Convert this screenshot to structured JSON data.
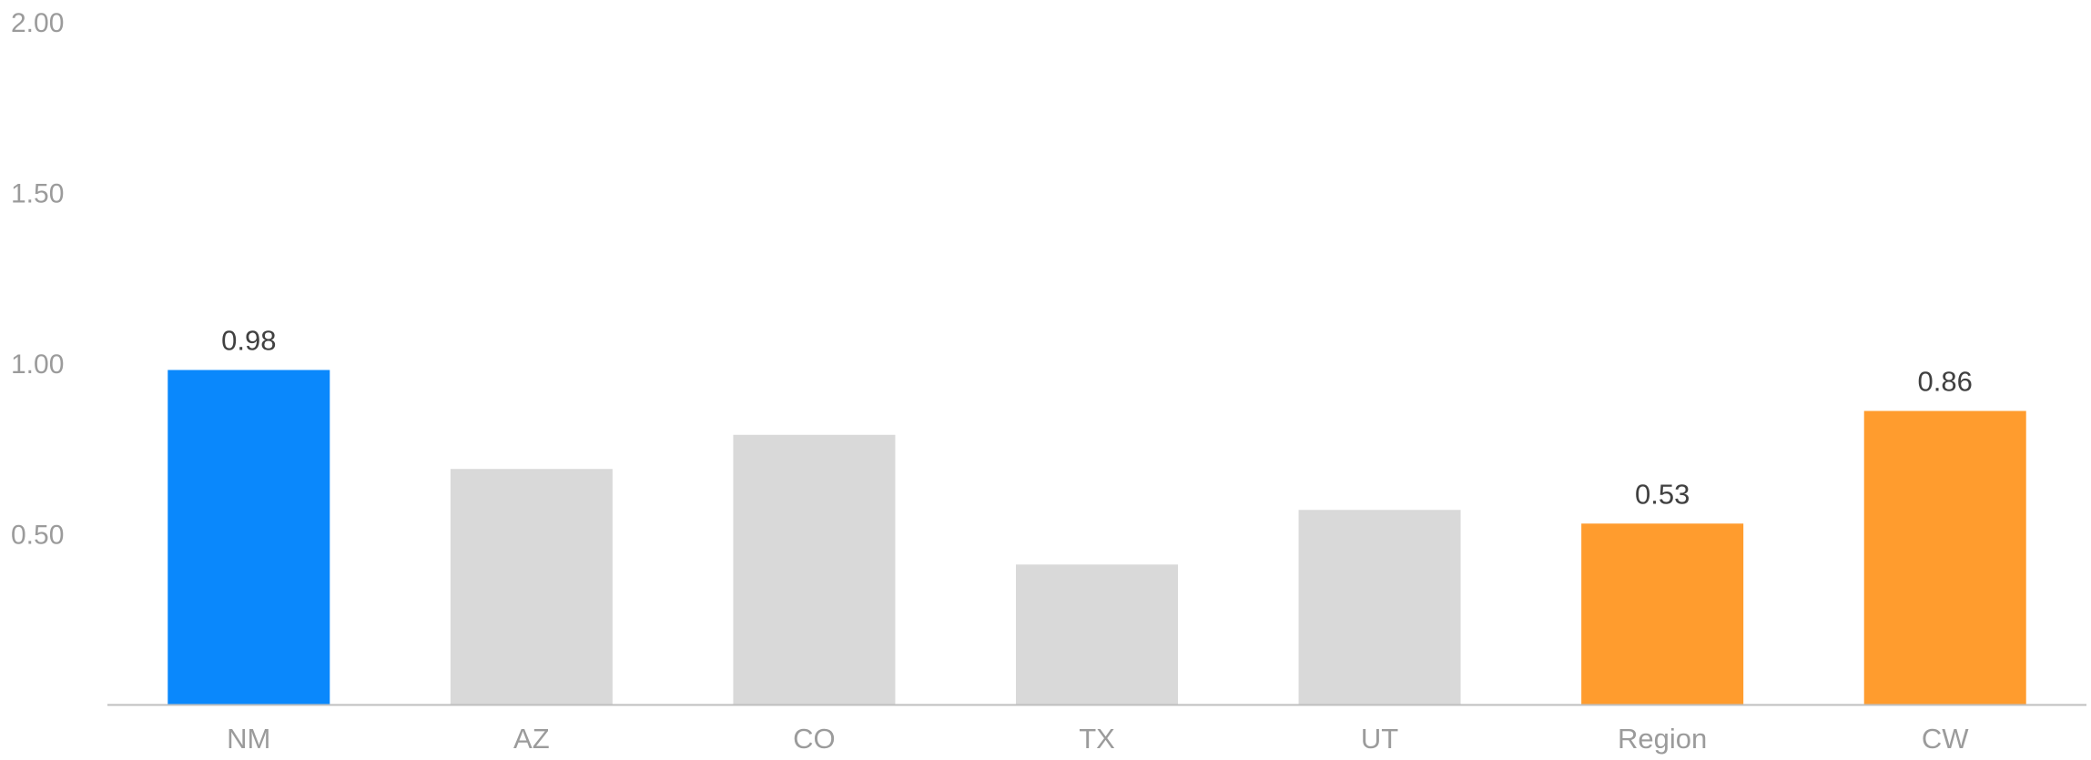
{
  "chart_data": {
    "type": "bar",
    "title": "",
    "xlabel": "",
    "ylabel": "",
    "categories": [
      "NM",
      "AZ",
      "CO",
      "TX",
      "UT",
      "Region",
      "CW"
    ],
    "values": [
      0.98,
      0.69,
      0.79,
      0.41,
      0.57,
      0.53,
      0.86
    ],
    "data_labels": [
      "0.98",
      null,
      null,
      null,
      null,
      "0.53",
      "0.86"
    ],
    "bar_colors": [
      "#0a88fc",
      "#d9d9d9",
      "#d9d9d9",
      "#d9d9d9",
      "#d9d9d9",
      "#ff9c2e",
      "#ff9c2e"
    ],
    "ylim": [
      0,
      2.0
    ],
    "yticks": [
      0.5,
      1.0,
      1.5,
      2.0
    ],
    "ytick_labels": [
      "0.50",
      "1.00",
      "1.50",
      "2.00"
    ],
    "grid": false,
    "legend": false,
    "axis_color": "#bfbfbf"
  }
}
